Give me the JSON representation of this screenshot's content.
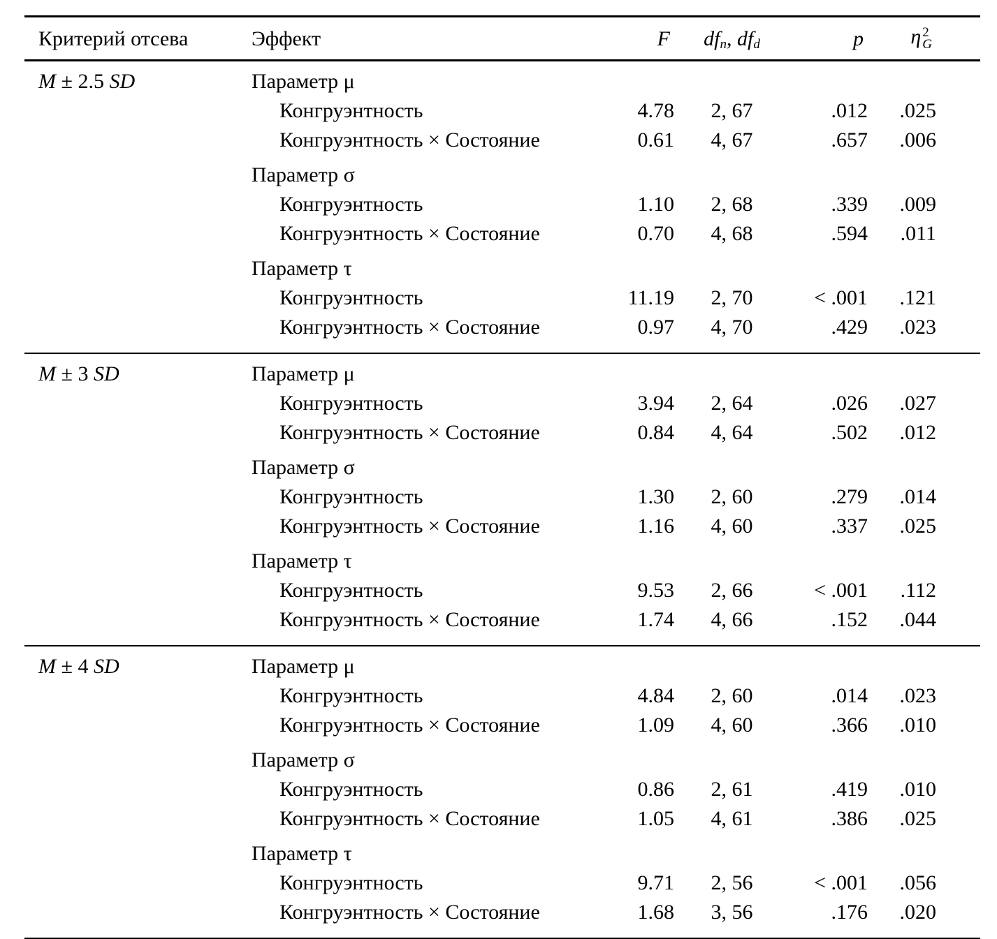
{
  "page": {
    "background": "#ffffff",
    "text_color": "#000000"
  },
  "table": {
    "header": {
      "criterion": "Критерий отсева",
      "effect": "Эффект",
      "f": "F",
      "df": {
        "word1": "df",
        "sub1": "n",
        "sep": ", ",
        "word2": "df",
        "sub2": "d"
      },
      "p": "p",
      "eta": {
        "base": "η",
        "sup": "2",
        "sub": "G"
      }
    },
    "sections": [
      {
        "criterion": {
          "m": "M",
          "pm": "±",
          "num": "2.5",
          "sd": "SD"
        },
        "groups": [
          {
            "param": "Параметр μ",
            "rows": [
              {
                "effect": "Конгруэнтность",
                "f": "4.78",
                "df": "2, 67",
                "p": ".012",
                "eta": ".025"
              },
              {
                "effect": "Конгруэнтность × Состояние",
                "f": "0.61",
                "df": "4, 67",
                "p": ".657",
                "eta": ".006"
              }
            ]
          },
          {
            "param": "Параметр σ",
            "rows": [
              {
                "effect": "Конгруэнтность",
                "f": "1.10",
                "df": "2, 68",
                "p": ".339",
                "eta": ".009"
              },
              {
                "effect": "Конгруэнтность × Состояние",
                "f": "0.70",
                "df": "4, 68",
                "p": ".594",
                "eta": ".011"
              }
            ]
          },
          {
            "param": "Параметр τ",
            "rows": [
              {
                "effect": "Конгруэнтность",
                "f": "11.19",
                "df": "2, 70",
                "p": "< .001",
                "eta": ".121"
              },
              {
                "effect": "Конгруэнтность × Состояние",
                "f": "0.97",
                "df": "4, 70",
                "p": ".429",
                "eta": ".023"
              }
            ]
          }
        ]
      },
      {
        "criterion": {
          "m": "M",
          "pm": "±",
          "num": "3",
          "sd": "SD"
        },
        "groups": [
          {
            "param": "Параметр μ",
            "rows": [
              {
                "effect": "Конгруэнтность",
                "f": "3.94",
                "df": "2, 64",
                "p": ".026",
                "eta": ".027"
              },
              {
                "effect": "Конгруэнтность × Состояние",
                "f": "0.84",
                "df": "4, 64",
                "p": ".502",
                "eta": ".012"
              }
            ]
          },
          {
            "param": "Параметр σ",
            "rows": [
              {
                "effect": "Конгруэнтность",
                "f": "1.30",
                "df": "2, 60",
                "p": ".279",
                "eta": ".014"
              },
              {
                "effect": "Конгруэнтность × Состояние",
                "f": "1.16",
                "df": "4, 60",
                "p": ".337",
                "eta": ".025"
              }
            ]
          },
          {
            "param": "Параметр τ",
            "rows": [
              {
                "effect": "Конгруэнтность",
                "f": "9.53",
                "df": "2, 66",
                "p": "< .001",
                "eta": ".112"
              },
              {
                "effect": "Конгруэнтность × Состояние",
                "f": "1.74",
                "df": "4, 66",
                "p": ".152",
                "eta": ".044"
              }
            ]
          }
        ]
      },
      {
        "criterion": {
          "m": "M",
          "pm": "±",
          "num": "4",
          "sd": "SD"
        },
        "groups": [
          {
            "param": "Параметр μ",
            "rows": [
              {
                "effect": "Конгруэнтность",
                "f": "4.84",
                "df": "2, 60",
                "p": ".014",
                "eta": ".023"
              },
              {
                "effect": "Конгруэнтность × Состояние",
                "f": "1.09",
                "df": "4, 60",
                "p": ".366",
                "eta": ".010"
              }
            ]
          },
          {
            "param": "Параметр σ",
            "rows": [
              {
                "effect": "Конгруэнтность",
                "f": "0.86",
                "df": "2, 61",
                "p": ".419",
                "eta": ".010"
              },
              {
                "effect": "Конгруэнтность × Состояние",
                "f": "1.05",
                "df": "4, 61",
                "p": ".386",
                "eta": ".025"
              }
            ]
          },
          {
            "param": "Параметр τ",
            "rows": [
              {
                "effect": "Конгруэнтность",
                "f": "9.71",
                "df": "2, 56",
                "p": "< .001",
                "eta": ".056"
              },
              {
                "effect": "Конгруэнтность × Состояние",
                "f": "1.68",
                "df": "3, 56",
                "p": ".176",
                "eta": ".020"
              }
            ]
          }
        ]
      }
    ]
  }
}
